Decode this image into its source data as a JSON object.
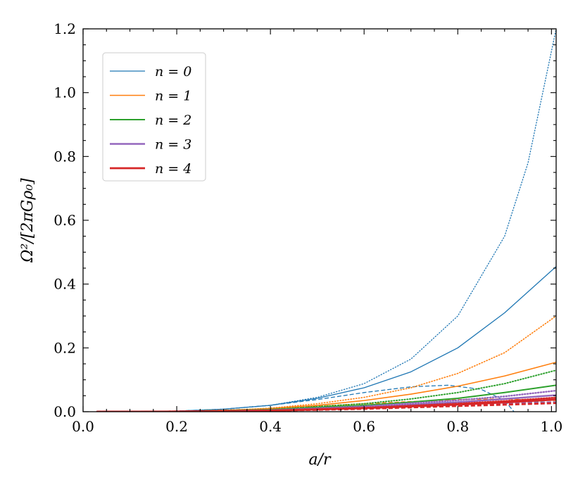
{
  "chart_data": {
    "type": "line",
    "title": "",
    "xlabel": "a/r",
    "ylabel": "Ω²/[2πGρ₀]",
    "xlim": [
      0.0,
      1.01
    ],
    "ylim": [
      0.0,
      1.2
    ],
    "xticks": [
      "0.0",
      "0.2",
      "0.4",
      "0.6",
      "0.8",
      "1.0"
    ],
    "yticks": [
      "0.0",
      "0.2",
      "0.4",
      "0.6",
      "0.8",
      "1.0",
      "1.2"
    ],
    "grid": false,
    "legend_position": "top-left",
    "legend": [
      {
        "label": "n = 0",
        "color": "#1f77b4"
      },
      {
        "label": "n = 1",
        "color": "#ff7f0e"
      },
      {
        "label": "n = 2",
        "color": "#2ca02c"
      },
      {
        "label": "n = 3",
        "color": "#9467bd"
      },
      {
        "label": "n = 4",
        "color": "#d62728"
      }
    ],
    "series": [
      {
        "n": 0,
        "style": "solid",
        "color": "#1f77b4",
        "x": [
          0.03,
          0.1,
          0.2,
          0.3,
          0.4,
          0.5,
          0.6,
          0.7,
          0.8,
          0.9,
          1.01
        ],
        "y": [
          0.0,
          0.0003,
          0.002,
          0.008,
          0.02,
          0.042,
          0.075,
          0.125,
          0.2,
          0.31,
          0.455
        ]
      },
      {
        "n": 0,
        "style": "dotted",
        "color": "#1f77b4",
        "x": [
          0.03,
          0.1,
          0.2,
          0.3,
          0.4,
          0.5,
          0.6,
          0.7,
          0.8,
          0.9,
          0.95,
          1.01
        ],
        "y": [
          0.0,
          0.0003,
          0.002,
          0.008,
          0.02,
          0.045,
          0.088,
          0.165,
          0.3,
          0.55,
          0.78,
          1.2
        ]
      },
      {
        "n": 0,
        "style": "dashed",
        "color": "#1f77b4",
        "x": [
          0.03,
          0.2,
          0.3,
          0.4,
          0.5,
          0.6,
          0.7,
          0.78,
          0.85,
          0.9,
          0.92
        ],
        "y": [
          0.0,
          0.002,
          0.008,
          0.02,
          0.038,
          0.06,
          0.078,
          0.083,
          0.07,
          0.035,
          0.0
        ]
      },
      {
        "n": 1,
        "style": "solid",
        "color": "#ff7f0e",
        "x": [
          0.03,
          0.2,
          0.3,
          0.4,
          0.5,
          0.6,
          0.7,
          0.8,
          0.9,
          1.01
        ],
        "y": [
          0.0,
          0.001,
          0.004,
          0.01,
          0.02,
          0.035,
          0.055,
          0.08,
          0.112,
          0.155
        ]
      },
      {
        "n": 1,
        "style": "dotted",
        "color": "#ff7f0e",
        "x": [
          0.03,
          0.2,
          0.3,
          0.4,
          0.5,
          0.6,
          0.7,
          0.8,
          0.9,
          1.01
        ],
        "y": [
          0.0,
          0.001,
          0.004,
          0.011,
          0.025,
          0.045,
          0.075,
          0.12,
          0.185,
          0.3
        ]
      },
      {
        "n": 1,
        "style": "dashed",
        "color": "#ff7f0e",
        "x": [
          0.03,
          0.2,
          0.4,
          0.6,
          0.8,
          0.9,
          1.01
        ],
        "y": [
          0.0,
          0.001,
          0.009,
          0.025,
          0.038,
          0.04,
          0.035
        ]
      },
      {
        "n": 2,
        "style": "solid",
        "color": "#2ca02c",
        "x": [
          0.03,
          0.2,
          0.4,
          0.6,
          0.7,
          0.8,
          0.9,
          1.01
        ],
        "y": [
          0.0,
          0.0008,
          0.006,
          0.02,
          0.03,
          0.042,
          0.06,
          0.083
        ]
      },
      {
        "n": 2,
        "style": "dotted",
        "color": "#2ca02c",
        "x": [
          0.03,
          0.2,
          0.4,
          0.6,
          0.7,
          0.8,
          0.9,
          1.01
        ],
        "y": [
          0.0,
          0.0008,
          0.007,
          0.025,
          0.04,
          0.06,
          0.088,
          0.13
        ]
      },
      {
        "n": 2,
        "style": "dashed",
        "color": "#2ca02c",
        "x": [
          0.03,
          0.2,
          0.4,
          0.6,
          0.8,
          0.9,
          1.01
        ],
        "y": [
          0.0,
          0.0007,
          0.005,
          0.016,
          0.026,
          0.029,
          0.03
        ]
      },
      {
        "n": 3,
        "style": "solid",
        "color": "#9467bd",
        "x": [
          0.03,
          0.2,
          0.4,
          0.6,
          0.8,
          0.9,
          1.01
        ],
        "y": [
          0.0,
          0.0005,
          0.004,
          0.014,
          0.03,
          0.04,
          0.052
        ]
      },
      {
        "n": 3,
        "style": "dotted",
        "color": "#9467bd",
        "x": [
          0.03,
          0.2,
          0.4,
          0.6,
          0.8,
          0.9,
          1.01
        ],
        "y": [
          0.0,
          0.0005,
          0.005,
          0.017,
          0.036,
          0.048,
          0.066
        ]
      },
      {
        "n": 3,
        "style": "dashed",
        "color": "#9467bd",
        "x": [
          0.03,
          0.2,
          0.4,
          0.6,
          0.8,
          0.9,
          1.01
        ],
        "y": [
          0.0,
          0.0005,
          0.004,
          0.012,
          0.022,
          0.026,
          0.03
        ]
      },
      {
        "n": 4,
        "style": "solid",
        "color": "#d62728",
        "x": [
          0.03,
          0.2,
          0.4,
          0.6,
          0.8,
          0.9,
          1.01
        ],
        "y": [
          0.0,
          0.0004,
          0.003,
          0.011,
          0.022,
          0.029,
          0.038
        ]
      },
      {
        "n": 4,
        "style": "dotted",
        "color": "#d62728",
        "x": [
          0.03,
          0.2,
          0.4,
          0.6,
          0.8,
          0.9,
          1.01
        ],
        "y": [
          0.0,
          0.0004,
          0.0035,
          0.012,
          0.025,
          0.033,
          0.044
        ]
      },
      {
        "n": 4,
        "style": "dashed",
        "color": "#d62728",
        "x": [
          0.03,
          0.2,
          0.4,
          0.6,
          0.8,
          0.9,
          1.01
        ],
        "y": [
          0.0,
          0.0004,
          0.003,
          0.009,
          0.018,
          0.022,
          0.027
        ]
      }
    ]
  }
}
